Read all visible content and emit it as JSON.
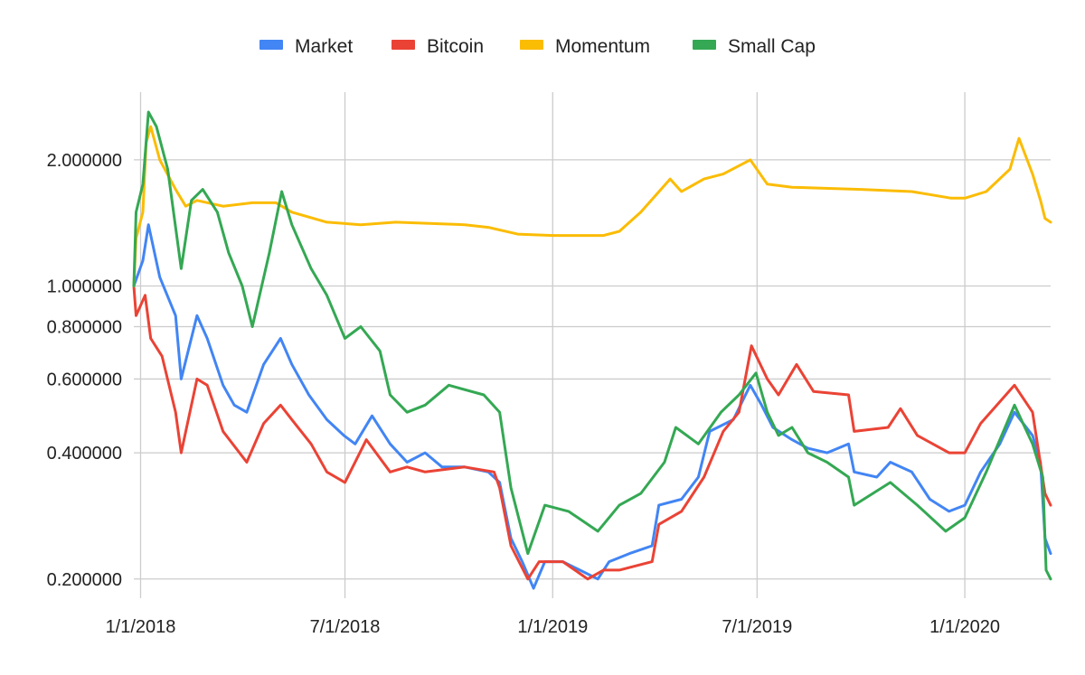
{
  "chart_data": {
    "type": "line",
    "title": "",
    "xlabel": "",
    "ylabel": "",
    "y_scale": "log",
    "grid": true,
    "legend_position": "top",
    "x_range": [
      "2017-12-26",
      "2020-03-17"
    ],
    "ylim": [
      0.18,
      2.9
    ],
    "x_ticks": [
      {
        "date": "2018-01-01",
        "label": "1/1/2018"
      },
      {
        "date": "2018-07-01",
        "label": "7/1/2018"
      },
      {
        "date": "2019-01-01",
        "label": "1/1/2019"
      },
      {
        "date": "2019-07-01",
        "label": "7/1/2019"
      },
      {
        "date": "2020-01-01",
        "label": "1/1/2020"
      }
    ],
    "y_ticks": [
      {
        "value": 0.2,
        "label": "0.200000"
      },
      {
        "value": 0.4,
        "label": "0.400000"
      },
      {
        "value": 0.6,
        "label": "0.600000"
      },
      {
        "value": 0.8,
        "label": "0.800000"
      },
      {
        "value": 1.0,
        "label": "1.000000"
      },
      {
        "value": 2.0,
        "label": "2.000000"
      }
    ],
    "series": [
      {
        "name": "Market",
        "color": "#4285F4",
        "points": [
          [
            "2017-12-26",
            1.0
          ],
          [
            "2018-01-03",
            1.15
          ],
          [
            "2018-01-08",
            1.4
          ],
          [
            "2018-01-18",
            1.05
          ],
          [
            "2018-02-01",
            0.85
          ],
          [
            "2018-02-06",
            0.6
          ],
          [
            "2018-02-20",
            0.85
          ],
          [
            "2018-03-01",
            0.75
          ],
          [
            "2018-03-15",
            0.58
          ],
          [
            "2018-03-25",
            0.52
          ],
          [
            "2018-04-05",
            0.5
          ],
          [
            "2018-04-20",
            0.65
          ],
          [
            "2018-05-05",
            0.75
          ],
          [
            "2018-05-15",
            0.65
          ],
          [
            "2018-05-30",
            0.55
          ],
          [
            "2018-06-15",
            0.48
          ],
          [
            "2018-06-30",
            0.44
          ],
          [
            "2018-07-10",
            0.42
          ],
          [
            "2018-07-25",
            0.49
          ],
          [
            "2018-08-10",
            0.42
          ],
          [
            "2018-08-25",
            0.38
          ],
          [
            "2018-09-10",
            0.4
          ],
          [
            "2018-09-25",
            0.37
          ],
          [
            "2018-10-15",
            0.37
          ],
          [
            "2018-11-05",
            0.36
          ],
          [
            "2018-11-15",
            0.34
          ],
          [
            "2018-11-25",
            0.25
          ],
          [
            "2018-12-05",
            0.22
          ],
          [
            "2018-12-15",
            0.19
          ],
          [
            "2018-12-25",
            0.22
          ],
          [
            "2019-01-10",
            0.22
          ],
          [
            "2019-01-25",
            0.21
          ],
          [
            "2019-02-10",
            0.2
          ],
          [
            "2019-02-20",
            0.22
          ],
          [
            "2019-03-10",
            0.23
          ],
          [
            "2019-03-30",
            0.24
          ],
          [
            "2019-04-05",
            0.3
          ],
          [
            "2019-04-25",
            0.31
          ],
          [
            "2019-05-10",
            0.35
          ],
          [
            "2019-05-20",
            0.45
          ],
          [
            "2019-06-10",
            0.48
          ],
          [
            "2019-06-25",
            0.58
          ],
          [
            "2019-07-05",
            0.52
          ],
          [
            "2019-07-15",
            0.46
          ],
          [
            "2019-08-01",
            0.43
          ],
          [
            "2019-08-15",
            0.41
          ],
          [
            "2019-09-01",
            0.4
          ],
          [
            "2019-09-20",
            0.42
          ],
          [
            "2019-09-25",
            0.36
          ],
          [
            "2019-10-15",
            0.35
          ],
          [
            "2019-10-27",
            0.38
          ],
          [
            "2019-11-15",
            0.36
          ],
          [
            "2019-12-01",
            0.31
          ],
          [
            "2019-12-18",
            0.29
          ],
          [
            "2020-01-01",
            0.3
          ],
          [
            "2020-01-15",
            0.36
          ],
          [
            "2020-02-01",
            0.42
          ],
          [
            "2020-02-14",
            0.5
          ],
          [
            "2020-03-01",
            0.44
          ],
          [
            "2020-03-08",
            0.38
          ],
          [
            "2020-03-12",
            0.25
          ],
          [
            "2020-03-17",
            0.23
          ]
        ]
      },
      {
        "name": "Bitcoin",
        "color": "#EA4335",
        "points": [
          [
            "2017-12-26",
            1.0
          ],
          [
            "2017-12-28",
            0.85
          ],
          [
            "2018-01-05",
            0.95
          ],
          [
            "2018-01-10",
            0.75
          ],
          [
            "2018-01-20",
            0.68
          ],
          [
            "2018-02-01",
            0.5
          ],
          [
            "2018-02-06",
            0.4
          ],
          [
            "2018-02-20",
            0.6
          ],
          [
            "2018-03-01",
            0.58
          ],
          [
            "2018-03-15",
            0.45
          ],
          [
            "2018-04-05",
            0.38
          ],
          [
            "2018-04-20",
            0.47
          ],
          [
            "2018-05-05",
            0.52
          ],
          [
            "2018-05-15",
            0.48
          ],
          [
            "2018-06-01",
            0.42
          ],
          [
            "2018-06-15",
            0.36
          ],
          [
            "2018-07-01",
            0.34
          ],
          [
            "2018-07-20",
            0.43
          ],
          [
            "2018-08-10",
            0.36
          ],
          [
            "2018-08-25",
            0.37
          ],
          [
            "2018-09-10",
            0.36
          ],
          [
            "2018-10-15",
            0.37
          ],
          [
            "2018-11-10",
            0.36
          ],
          [
            "2018-11-15",
            0.33
          ],
          [
            "2018-11-25",
            0.24
          ],
          [
            "2018-12-10",
            0.2
          ],
          [
            "2018-12-20",
            0.22
          ],
          [
            "2019-01-10",
            0.22
          ],
          [
            "2019-02-01",
            0.2
          ],
          [
            "2019-02-15",
            0.21
          ],
          [
            "2019-03-01",
            0.21
          ],
          [
            "2019-03-30",
            0.22
          ],
          [
            "2019-04-05",
            0.27
          ],
          [
            "2019-04-25",
            0.29
          ],
          [
            "2019-05-15",
            0.35
          ],
          [
            "2019-06-01",
            0.45
          ],
          [
            "2019-06-15",
            0.5
          ],
          [
            "2019-06-26",
            0.72
          ],
          [
            "2019-07-10",
            0.6
          ],
          [
            "2019-07-20",
            0.55
          ],
          [
            "2019-08-05",
            0.65
          ],
          [
            "2019-08-20",
            0.56
          ],
          [
            "2019-09-20",
            0.55
          ],
          [
            "2019-09-25",
            0.45
          ],
          [
            "2019-10-25",
            0.46
          ],
          [
            "2019-11-05",
            0.51
          ],
          [
            "2019-11-20",
            0.44
          ],
          [
            "2019-12-18",
            0.4
          ],
          [
            "2020-01-01",
            0.4
          ],
          [
            "2020-01-15",
            0.47
          ],
          [
            "2020-02-14",
            0.58
          ],
          [
            "2020-03-01",
            0.5
          ],
          [
            "2020-03-12",
            0.32
          ],
          [
            "2020-03-17",
            0.3
          ]
        ]
      },
      {
        "name": "Momentum",
        "color": "#FBBC04",
        "points": [
          [
            "2017-12-26",
            1.0
          ],
          [
            "2017-12-28",
            1.3
          ],
          [
            "2018-01-03",
            1.5
          ],
          [
            "2018-01-06",
            2.2
          ],
          [
            "2018-01-10",
            2.4
          ],
          [
            "2018-01-18",
            2.0
          ],
          [
            "2018-02-01",
            1.7
          ],
          [
            "2018-02-10",
            1.55
          ],
          [
            "2018-02-20",
            1.6
          ],
          [
            "2018-03-15",
            1.55
          ],
          [
            "2018-04-10",
            1.58
          ],
          [
            "2018-05-01",
            1.58
          ],
          [
            "2018-05-15",
            1.5
          ],
          [
            "2018-06-15",
            1.42
          ],
          [
            "2018-07-15",
            1.4
          ],
          [
            "2018-08-15",
            1.42
          ],
          [
            "2018-10-15",
            1.4
          ],
          [
            "2018-11-05",
            1.38
          ],
          [
            "2018-12-01",
            1.33
          ],
          [
            "2019-01-01",
            1.32
          ],
          [
            "2019-02-15",
            1.32
          ],
          [
            "2019-03-01",
            1.35
          ],
          [
            "2019-03-20",
            1.5
          ],
          [
            "2019-04-15",
            1.8
          ],
          [
            "2019-04-25",
            1.68
          ],
          [
            "2019-05-15",
            1.8
          ],
          [
            "2019-06-01",
            1.85
          ],
          [
            "2019-06-25",
            2.0
          ],
          [
            "2019-07-10",
            1.75
          ],
          [
            "2019-08-01",
            1.72
          ],
          [
            "2019-10-01",
            1.7
          ],
          [
            "2019-11-15",
            1.68
          ],
          [
            "2019-12-20",
            1.62
          ],
          [
            "2020-01-01",
            1.62
          ],
          [
            "2020-01-20",
            1.68
          ],
          [
            "2020-02-10",
            1.9
          ],
          [
            "2020-02-18",
            2.25
          ],
          [
            "2020-03-01",
            1.85
          ],
          [
            "2020-03-08",
            1.6
          ],
          [
            "2020-03-12",
            1.45
          ],
          [
            "2020-03-17",
            1.42
          ]
        ]
      },
      {
        "name": "Small Cap",
        "color": "#34A853",
        "points": [
          [
            "2017-12-26",
            1.0
          ],
          [
            "2017-12-28",
            1.5
          ],
          [
            "2018-01-03",
            1.75
          ],
          [
            "2018-01-08",
            2.6
          ],
          [
            "2018-01-15",
            2.4
          ],
          [
            "2018-01-25",
            1.9
          ],
          [
            "2018-02-06",
            1.1
          ],
          [
            "2018-02-15",
            1.6
          ],
          [
            "2018-02-25",
            1.7
          ],
          [
            "2018-03-10",
            1.5
          ],
          [
            "2018-03-20",
            1.2
          ],
          [
            "2018-04-01",
            1.0
          ],
          [
            "2018-04-10",
            0.8
          ],
          [
            "2018-04-25",
            1.2
          ],
          [
            "2018-05-06",
            1.68
          ],
          [
            "2018-05-15",
            1.4
          ],
          [
            "2018-06-01",
            1.1
          ],
          [
            "2018-06-15",
            0.95
          ],
          [
            "2018-07-01",
            0.75
          ],
          [
            "2018-07-15",
            0.8
          ],
          [
            "2018-08-01",
            0.7
          ],
          [
            "2018-08-10",
            0.55
          ],
          [
            "2018-08-25",
            0.5
          ],
          [
            "2018-09-10",
            0.52
          ],
          [
            "2018-10-01",
            0.58
          ],
          [
            "2018-11-01",
            0.55
          ],
          [
            "2018-11-15",
            0.5
          ],
          [
            "2018-11-25",
            0.33
          ],
          [
            "2018-12-10",
            0.23
          ],
          [
            "2018-12-25",
            0.3
          ],
          [
            "2019-01-15",
            0.29
          ],
          [
            "2019-02-10",
            0.26
          ],
          [
            "2019-03-01",
            0.3
          ],
          [
            "2019-03-20",
            0.32
          ],
          [
            "2019-04-10",
            0.38
          ],
          [
            "2019-04-20",
            0.46
          ],
          [
            "2019-05-10",
            0.42
          ],
          [
            "2019-05-30",
            0.5
          ],
          [
            "2019-06-15",
            0.55
          ],
          [
            "2019-06-30",
            0.62
          ],
          [
            "2019-07-10",
            0.5
          ],
          [
            "2019-07-20",
            0.44
          ],
          [
            "2019-08-01",
            0.46
          ],
          [
            "2019-08-15",
            0.4
          ],
          [
            "2019-09-01",
            0.38
          ],
          [
            "2019-09-20",
            0.35
          ],
          [
            "2019-09-25",
            0.3
          ],
          [
            "2019-10-27",
            0.34
          ],
          [
            "2019-11-20",
            0.3
          ],
          [
            "2019-12-15",
            0.26
          ],
          [
            "2020-01-01",
            0.28
          ],
          [
            "2020-01-20",
            0.36
          ],
          [
            "2020-02-14",
            0.52
          ],
          [
            "2020-03-01",
            0.42
          ],
          [
            "2020-03-10",
            0.35
          ],
          [
            "2020-03-13",
            0.21
          ],
          [
            "2020-03-17",
            0.2
          ]
        ]
      }
    ]
  }
}
